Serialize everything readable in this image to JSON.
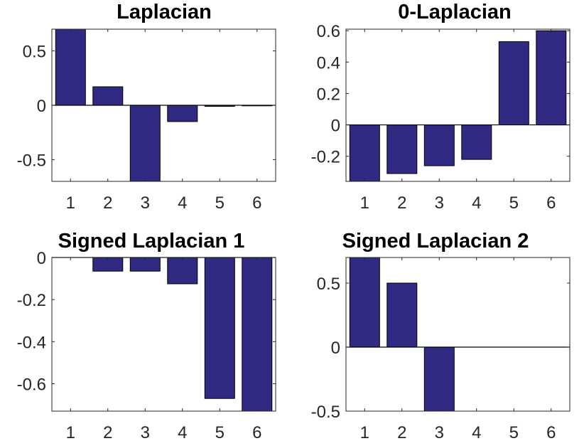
{
  "figure": {
    "background": "#ffffff",
    "bar_color": "#312a83",
    "axis_color": "#262626"
  },
  "chart_data": [
    {
      "type": "bar",
      "title": "Laplacian",
      "categories": [
        "1",
        "2",
        "3",
        "4",
        "5",
        "6"
      ],
      "values": [
        0.7,
        0.17,
        -0.7,
        -0.15,
        -0.01,
        -0.005
      ],
      "ylim": [
        -0.7,
        0.7
      ],
      "yticks": [
        {
          "v": 0.5,
          "label": "0.5"
        },
        {
          "v": 0,
          "label": "0"
        },
        {
          "v": -0.5,
          "label": "-0.5"
        }
      ],
      "xlabel": "",
      "ylabel": "",
      "grid": false
    },
    {
      "type": "bar",
      "title": "0-Laplacian",
      "categories": [
        "1",
        "2",
        "3",
        "4",
        "5",
        "6"
      ],
      "values": [
        -0.36,
        -0.31,
        -0.26,
        -0.22,
        0.53,
        0.6
      ],
      "ylim": [
        -0.36,
        0.61
      ],
      "yticks": [
        {
          "v": 0.6,
          "label": "0.6"
        },
        {
          "v": 0.4,
          "label": "0.4"
        },
        {
          "v": 0.2,
          "label": "0.2"
        },
        {
          "v": 0,
          "label": "0"
        },
        {
          "v": -0.2,
          "label": "-0.2"
        }
      ],
      "xlabel": "",
      "ylabel": "",
      "grid": false
    },
    {
      "type": "bar",
      "title": "Signed Laplacian 1",
      "categories": [
        "1",
        "2",
        "3",
        "4",
        "5",
        "6"
      ],
      "values": [
        0.0,
        -0.065,
        -0.065,
        -0.125,
        -0.67,
        -0.75
      ],
      "ylim": [
        -0.73,
        0
      ],
      "yticks": [
        {
          "v": 0,
          "label": "0"
        },
        {
          "v": -0.2,
          "label": "-0.2"
        },
        {
          "v": -0.4,
          "label": "-0.4"
        },
        {
          "v": -0.6,
          "label": "-0.6"
        }
      ],
      "xlabel": "",
      "ylabel": "",
      "grid": false
    },
    {
      "type": "bar",
      "title": "Signed Laplacian 2",
      "categories": [
        "1",
        "2",
        "3",
        "4",
        "5",
        "6"
      ],
      "values": [
        0.7,
        0.5,
        -0.5,
        0.0,
        0.0,
        0.0
      ],
      "ylim": [
        -0.5,
        0.7
      ],
      "yticks": [
        {
          "v": 0.5,
          "label": "0.5"
        },
        {
          "v": 0,
          "label": "0"
        },
        {
          "v": -0.5,
          "label": "-0.5"
        }
      ],
      "xlabel": "",
      "ylabel": "",
      "grid": false
    }
  ]
}
